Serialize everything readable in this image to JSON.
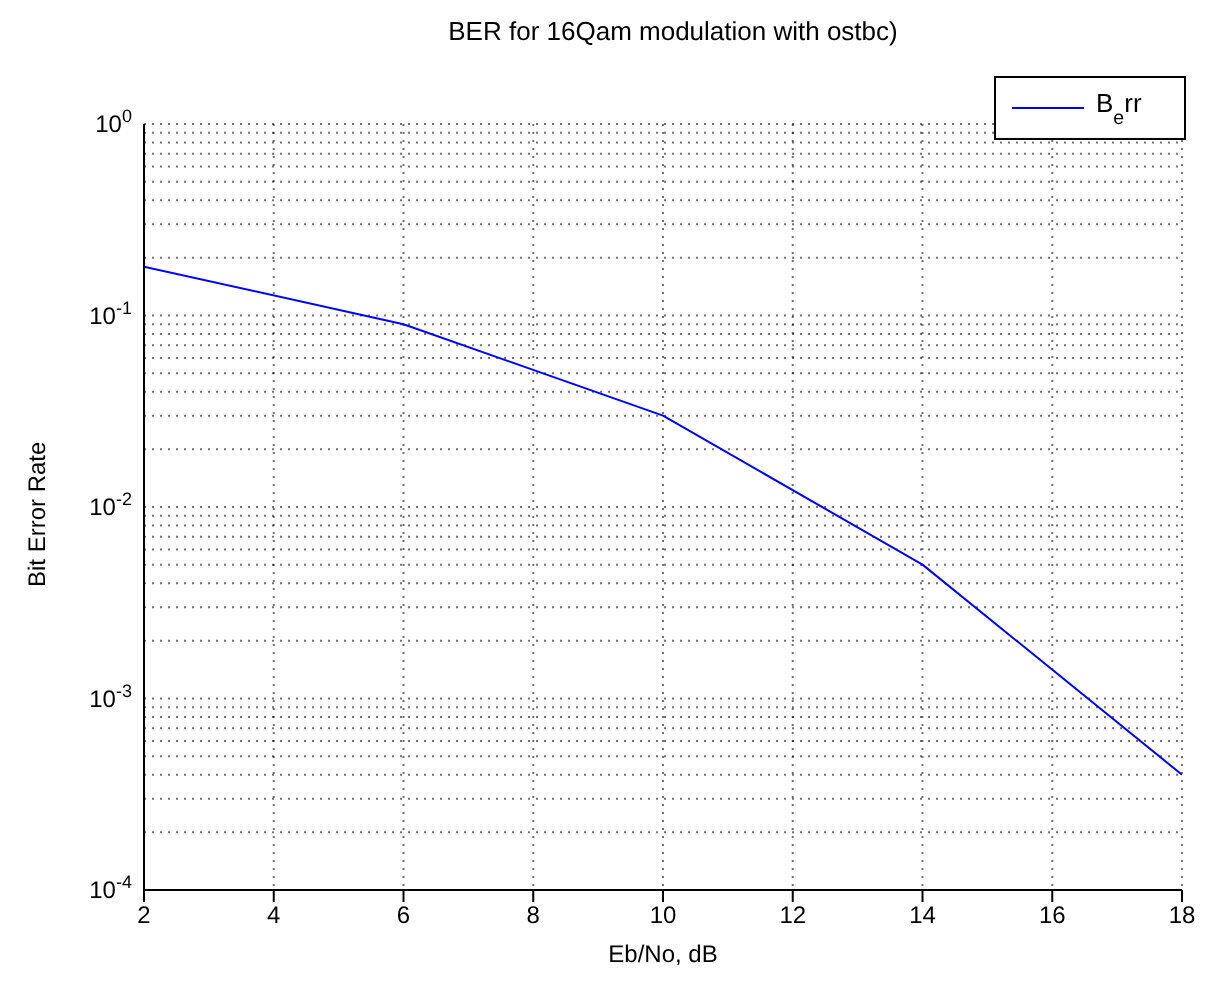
{
  "chart_data": {
    "type": "line",
    "title": "BER for 16Qam modulation with ostbc)",
    "xlabel": "Eb/No, dB",
    "ylabel": "Bit Error Rate",
    "x": [
      2,
      6,
      10,
      14,
      18
    ],
    "series": [
      {
        "name": "B$_{e}$rr",
        "color": "#0000ff",
        "values": [
          0.18,
          0.09,
          0.03,
          0.005,
          0.0004
        ]
      }
    ],
    "xlim": [
      2,
      18
    ],
    "xticks": [
      2,
      4,
      6,
      8,
      10,
      12,
      14,
      16,
      18
    ],
    "ylim": [
      0.0001,
      1
    ],
    "yticks": [
      {
        "value": 0.0001,
        "label": "10$^{-4}$"
      },
      {
        "value": 0.0002,
        "label": null
      },
      {
        "value": 0.0003,
        "label": null
      },
      {
        "value": 0.0004,
        "label": null
      },
      {
        "value": 0.0005,
        "label": null
      },
      {
        "value": 0.0006,
        "label": null
      },
      {
        "value": 0.0007,
        "label": null
      },
      {
        "value": 0.0008,
        "label": null
      },
      {
        "value": 0.0009,
        "label": null
      },
      {
        "value": 0.001,
        "label": "10$^{-3}$"
      },
      {
        "value": 0.002,
        "label": null
      },
      {
        "value": 0.003,
        "label": null
      },
      {
        "value": 0.004,
        "label": null
      },
      {
        "value": 0.005,
        "label": null
      },
      {
        "value": 0.006,
        "label": null
      },
      {
        "value": 0.007,
        "label": null
      },
      {
        "value": 0.008,
        "label": null
      },
      {
        "value": 0.009,
        "label": null
      },
      {
        "value": 0.01,
        "label": "10$^{-2}$"
      },
      {
        "value": 0.02,
        "label": null
      },
      {
        "value": 0.03,
        "label": null
      },
      {
        "value": 0.04,
        "label": null
      },
      {
        "value": 0.05,
        "label": null
      },
      {
        "value": 0.06,
        "label": null
      },
      {
        "value": 0.07,
        "label": null
      },
      {
        "value": 0.08,
        "label": null
      },
      {
        "value": 0.09,
        "label": null
      },
      {
        "value": 0.1,
        "label": "10$^{-1}$"
      },
      {
        "value": 0.2,
        "label": null
      },
      {
        "value": 0.3,
        "label": null
      },
      {
        "value": 0.4,
        "label": null
      },
      {
        "value": 0.5,
        "label": null
      },
      {
        "value": 0.6,
        "label": null
      },
      {
        "value": 0.7,
        "label": null
      },
      {
        "value": 0.8,
        "label": null
      },
      {
        "value": 0.9,
        "label": null
      },
      {
        "value": 1,
        "label": "10$^{0}$"
      }
    ],
    "log": "y",
    "grid": true,
    "legend": "top right",
    "marker": "none",
    "line_style": "solid"
  }
}
